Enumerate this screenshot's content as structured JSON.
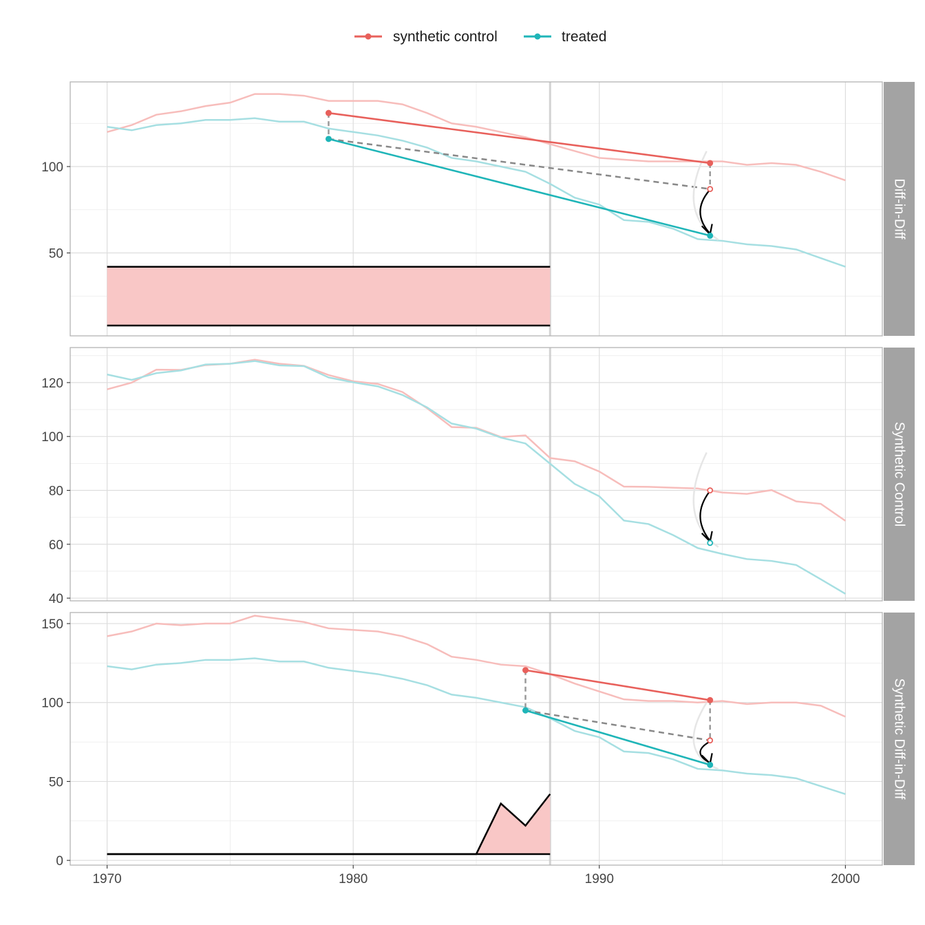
{
  "legend": {
    "items": [
      {
        "label": "synthetic control",
        "color": "#E8605B"
      },
      {
        "label": "treated",
        "color": "#1FB5B8"
      }
    ],
    "placement": "top"
  },
  "colors": {
    "synthetic_control": "#E8605B",
    "treated": "#1FB5B8",
    "synthetic_faded": "#F7BDBB",
    "treated_faded": "#A6DFE2",
    "weights_fill": "#F9C7C6",
    "strip_bg": "#A3A3A3"
  },
  "x_axis": {
    "ticks": [
      1970,
      1980,
      1990,
      2000
    ],
    "range": [
      1968.5,
      2001.5
    ]
  },
  "chart_data": [
    {
      "type": "line",
      "panel": "Diff-in-Diff",
      "ylim": [
        2,
        149
      ],
      "y_ticks": [
        50,
        100
      ],
      "treatment_year": 1988,
      "x": [
        1970,
        1971,
        1972,
        1973,
        1974,
        1975,
        1976,
        1977,
        1978,
        1979,
        1980,
        1981,
        1982,
        1983,
        1984,
        1985,
        1986,
        1987,
        1988,
        1989,
        1990,
        1991,
        1992,
        1993,
        1994,
        1995,
        1996,
        1997,
        1998,
        1999,
        2000
      ],
      "series": [
        {
          "name": "synthetic control",
          "values": [
            120,
            124,
            130,
            132,
            135,
            137,
            142,
            142,
            141,
            138,
            138,
            138,
            136,
            131,
            125,
            123,
            120,
            117,
            113,
            109,
            105,
            104,
            103,
            103,
            103,
            103,
            101,
            102,
            101,
            97,
            92
          ]
        },
        {
          "name": "treated",
          "values": [
            123,
            121,
            124,
            125,
            127,
            127,
            128,
            126,
            126,
            122,
            120,
            118,
            115,
            111,
            105,
            103,
            100,
            97,
            90,
            82,
            78,
            69,
            68,
            64,
            58,
            57,
            55,
            54,
            52,
            47,
            42
          ]
        }
      ],
      "effect_points": {
        "pre_x": 1979,
        "post_x": 1994.5,
        "control_pre": 131,
        "control_post": 102,
        "treated_pre": 116,
        "treated_post": 60,
        "counterfactual_post": 87
      },
      "time_weights": {
        "x": [
          1970,
          1988
        ],
        "lower": 8,
        "upper": 42
      }
    },
    {
      "type": "line",
      "panel": "Synthetic Control",
      "ylim": [
        39,
        133
      ],
      "y_ticks": [
        40,
        60,
        80,
        100,
        120
      ],
      "treatment_year": 1988,
      "x": [
        1970,
        1971,
        1972,
        1973,
        1974,
        1975,
        1976,
        1977,
        1978,
        1979,
        1980,
        1981,
        1982,
        1983,
        1984,
        1985,
        1986,
        1987,
        1988,
        1989,
        1990,
        1991,
        1992,
        1993,
        1994,
        1995,
        1996,
        1997,
        1998,
        1999,
        2000
      ],
      "series": [
        {
          "name": "synthetic control",
          "values": [
            117.5,
            120,
            124.8,
            124.7,
            126.5,
            127,
            128.5,
            127,
            126.2,
            122.8,
            120.5,
            119.5,
            116.5,
            110.5,
            103.5,
            103.2,
            99.8,
            100.4,
            92,
            90.8,
            87,
            81.4,
            81.3,
            81,
            80.7,
            79.2,
            78.7,
            80.1,
            75.9,
            75,
            68.7
          ]
        },
        {
          "name": "treated",
          "values": [
            123,
            121,
            123.5,
            124.5,
            126.7,
            127,
            128,
            126.4,
            126.1,
            121.9,
            120.1,
            118.6,
            115.4,
            110.8,
            104.8,
            102.9,
            99.6,
            97.4,
            89.9,
            82.4,
            77.8,
            68.8,
            67.5,
            63.4,
            58.6,
            56.4,
            54.5,
            53.8,
            52.3,
            47,
            41.6
          ]
        }
      ],
      "effect_points": {
        "post_x": 1994.5,
        "control_post": 80,
        "treated_post": 60.5
      }
    },
    {
      "type": "line",
      "panel": "Synthetic Diff-in-Diff",
      "ylim": [
        -3,
        157
      ],
      "y_ticks": [
        0,
        50,
        100,
        150
      ],
      "treatment_year": 1988,
      "x": [
        1970,
        1971,
        1972,
        1973,
        1974,
        1975,
        1976,
        1977,
        1978,
        1979,
        1980,
        1981,
        1982,
        1983,
        1984,
        1985,
        1986,
        1987,
        1988,
        1989,
        1990,
        1991,
        1992,
        1993,
        1994,
        1995,
        1996,
        1997,
        1998,
        1999,
        2000
      ],
      "series": [
        {
          "name": "synthetic control",
          "values": [
            142,
            145,
            150,
            149,
            150,
            150,
            155,
            153,
            151,
            147,
            146,
            145,
            142,
            137,
            129,
            127,
            124,
            123,
            118,
            112,
            107,
            102,
            101,
            101,
            100,
            101,
            99,
            100,
            100,
            98,
            91
          ]
        },
        {
          "name": "treated",
          "values": [
            123,
            121,
            124,
            125,
            127,
            127,
            128,
            126,
            126,
            122,
            120,
            118,
            115,
            111,
            105,
            103,
            100,
            97,
            90,
            82,
            78,
            69,
            68,
            64,
            58,
            57,
            55,
            54,
            52,
            47,
            42
          ]
        }
      ],
      "effect_points": {
        "pre_x": 1987,
        "post_x": 1994.5,
        "control_pre": 120.5,
        "control_post": 101.5,
        "treated_pre": 95,
        "treated_post": 60.5,
        "counterfactual_post": 76
      },
      "time_weights": {
        "x": [
          1970,
          1985,
          1986,
          1987,
          1988
        ],
        "lower": 4,
        "upper": [
          4,
          4,
          36,
          22,
          42
        ]
      }
    }
  ]
}
